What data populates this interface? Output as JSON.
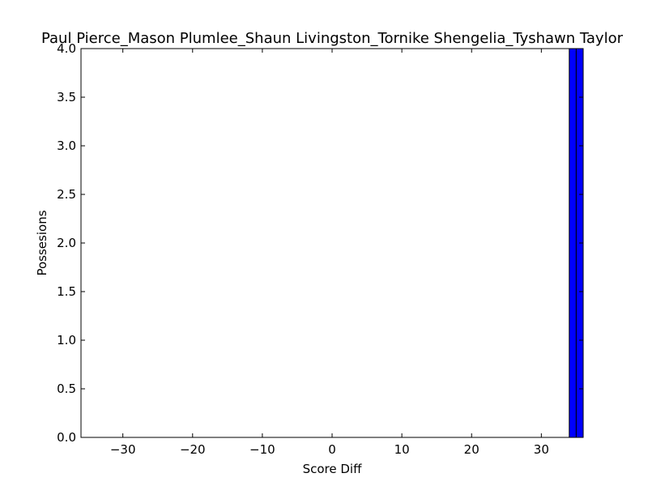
{
  "chart_data": {
    "type": "bar",
    "title": "Paul Pierce_Mason Plumlee_Shaun Livingston_Tornike Shengelia_Tyshawn Taylor",
    "xlabel": "Score Diff",
    "ylabel": "Possesions",
    "xlim": [
      -36,
      36
    ],
    "ylim": [
      0,
      4
    ],
    "xticks": [
      -30,
      -20,
      -10,
      0,
      10,
      20,
      30
    ],
    "xtick_labels": [
      "−30",
      "−20",
      "−10",
      "0",
      "10",
      "20",
      "30"
    ],
    "yticks": [
      0,
      0.5,
      1,
      1.5,
      2,
      2.5,
      3,
      3.5,
      4
    ],
    "ytick_labels": [
      "0.0",
      "0.5",
      "1.0",
      "1.5",
      "2.0",
      "2.5",
      "3.0",
      "3.5",
      "4.0"
    ],
    "bin_width": 1,
    "series": [
      {
        "values": [
          {
            "x": 34,
            "y": 4
          },
          {
            "x": 35,
            "y": 4
          }
        ],
        "color": "#0000ff"
      }
    ],
    "grid": false
  }
}
